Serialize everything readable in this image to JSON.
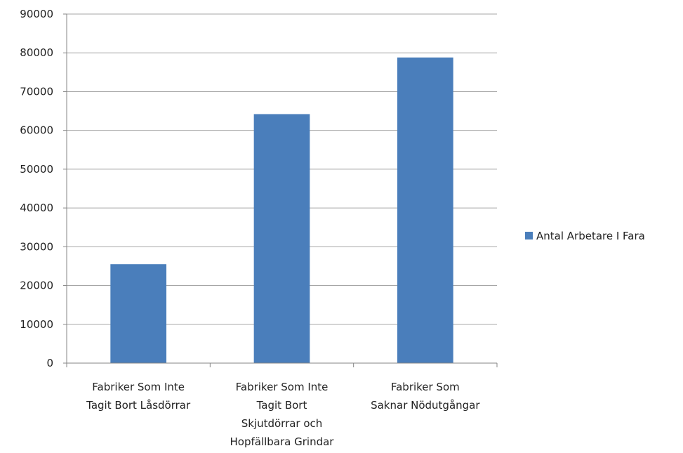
{
  "chart_data": {
    "type": "bar",
    "categories": [
      [
        "Fabriker Som Inte",
        "Tagit Bort Låsdörrar"
      ],
      [
        "Fabriker Som Inte",
        "Tagit Bort",
        "Skjutdörrar och",
        "Hopfällbara Grindar"
      ],
      [
        "Fabriker Som",
        "Saknar Nödutgångar"
      ]
    ],
    "series": [
      {
        "name": "Antal Arbetare I Fara",
        "values": [
          25500,
          64200,
          78800
        ],
        "color": "#4a7ebb"
      }
    ],
    "yticks": [
      "0",
      "10000",
      "20000",
      "30000",
      "40000",
      "50000",
      "60000",
      "70000",
      "80000",
      "90000"
    ],
    "ylim": [
      0,
      90000
    ],
    "grid": true,
    "legend_position": "right",
    "title": "",
    "xlabel": "",
    "ylabel": ""
  }
}
